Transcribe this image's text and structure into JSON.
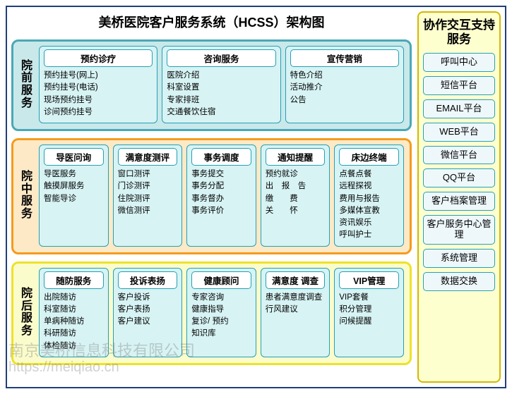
{
  "title": "美桥医院客户服务系统（HCSS）架构图",
  "colors": {
    "outer_border": "#1f3f7a",
    "card_bg": "#d7f3f4",
    "card_border": "#25a0b5",
    "header_bg": "#ffffff",
    "side_bg": "#feffcf",
    "side_border": "#d4b800"
  },
  "stages": [
    {
      "label": "院前服务",
      "bg": "#c9e8ea",
      "border": "#4aa8b6",
      "cards": [
        {
          "header": "预约诊疗",
          "items": [
            "预约挂号(网上)",
            "预约挂号(电话)",
            "现场预约挂号",
            "诊间预约挂号"
          ]
        },
        {
          "header": "咨询服务",
          "items": [
            "医院介绍",
            "科室设置",
            "专家排班",
            "交通餐饮住宿"
          ]
        },
        {
          "header": "宣传营销",
          "items": [
            "特色介绍",
            "活动推介",
            "公告"
          ]
        }
      ]
    },
    {
      "label": "院中服务",
      "bg": "#fde9c6",
      "border": "#f59b1c",
      "cards": [
        {
          "header": "导医问询",
          "items": [
            "导医服务",
            "触摸屏服务",
            "智能导诊"
          ]
        },
        {
          "header": "满意度测评",
          "items": [
            "窗口测评",
            "门诊测评",
            "住院测评",
            "微信测评"
          ]
        },
        {
          "header": "事务调度",
          "items": [
            "事务提交",
            "事务分配",
            "事务督办",
            "事务评价"
          ]
        },
        {
          "header": "通知提醒",
          "items": [
            "预约就诊",
            "出　报　告",
            "缴　　费",
            "关　　怀"
          ]
        },
        {
          "header": "床边终端",
          "items": [
            "点餐点餐",
            "远程探视",
            "费用与报告",
            "多媒体宣教",
            "资讯娱乐",
            "呼叫护士"
          ]
        }
      ]
    },
    {
      "label": "院后服务",
      "bg": "#fbfccb",
      "border": "#eee228",
      "cards": [
        {
          "header": "随防服务",
          "items": [
            "出院随访",
            "科室随访",
            "单病种随访",
            "科研随访",
            "体检随访"
          ]
        },
        {
          "header": "投诉表扬",
          "items": [
            "客户投诉",
            "客户表扬",
            "客户建议"
          ]
        },
        {
          "header": "健康顾问",
          "items": [
            "专家咨询",
            "健康指导",
            "复诊/ 预约",
            "知识库"
          ]
        },
        {
          "header": "满意度 调查",
          "items": [
            "患者满意度调查",
            "行风建议"
          ]
        },
        {
          "header": "VIP管理",
          "items": [
            "VIP套餐",
            "积分管理",
            "问候提醒"
          ]
        }
      ]
    }
  ],
  "side": {
    "title": "协作交互支持服务",
    "items": [
      "呼叫中心",
      "短信平台",
      "EMAIL平台",
      "WEB平台",
      "微信平台",
      "QQ平台",
      "客户档案管理",
      "客户服务中心管理",
      "系统管理",
      "数据交换"
    ]
  },
  "watermark1": "南京美桥信息科技有限公司",
  "watermark2": "https://meiqiao.cn"
}
